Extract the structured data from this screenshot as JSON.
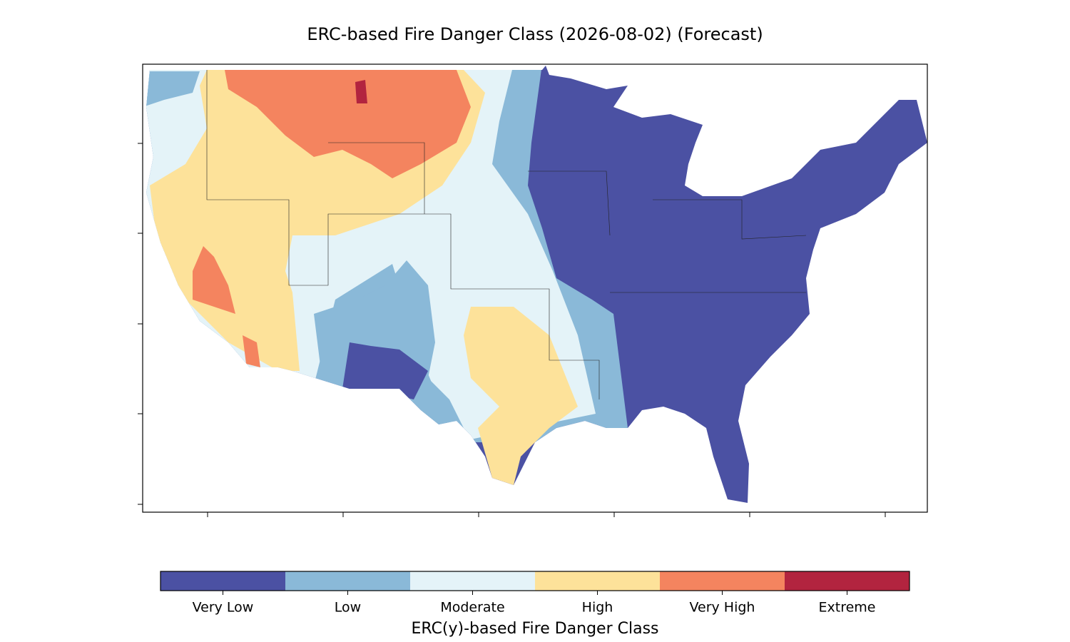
{
  "title": "ERC-based Fire Danger Class (2026-08-02) (Forecast)",
  "colorbar": {
    "label": "ERC(y)-based Fire Danger Class",
    "classes": [
      {
        "name": "Very Low",
        "color": "#4b51a3"
      },
      {
        "name": "Low",
        "color": "#8ab9d8"
      },
      {
        "name": "Moderate",
        "color": "#e4f3f8"
      },
      {
        "name": "High",
        "color": "#fde29a"
      },
      {
        "name": "Very High",
        "color": "#f4845f"
      },
      {
        "name": "Extreme",
        "color": "#b2243f"
      }
    ]
  }
}
